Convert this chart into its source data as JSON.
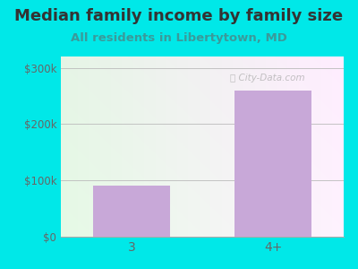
{
  "title": "Median family income by family size",
  "subtitle": "All residents in Libertytown, MD",
  "categories": [
    "3",
    "4+"
  ],
  "values": [
    90000,
    260000
  ],
  "bar_color": "#c8a8d8",
  "background_color": "#00e8e8",
  "ylim": [
    0,
    320000
  ],
  "yticks": [
    0,
    100000,
    200000,
    300000
  ],
  "ytick_labels": [
    "$0",
    "$100k",
    "$200k",
    "$300k"
  ],
  "title_color": "#333333",
  "subtitle_color": "#3a9a9a",
  "tick_color": "#666666",
  "watermark": "City-Data.com",
  "title_fontsize": 13,
  "subtitle_fontsize": 9.5
}
